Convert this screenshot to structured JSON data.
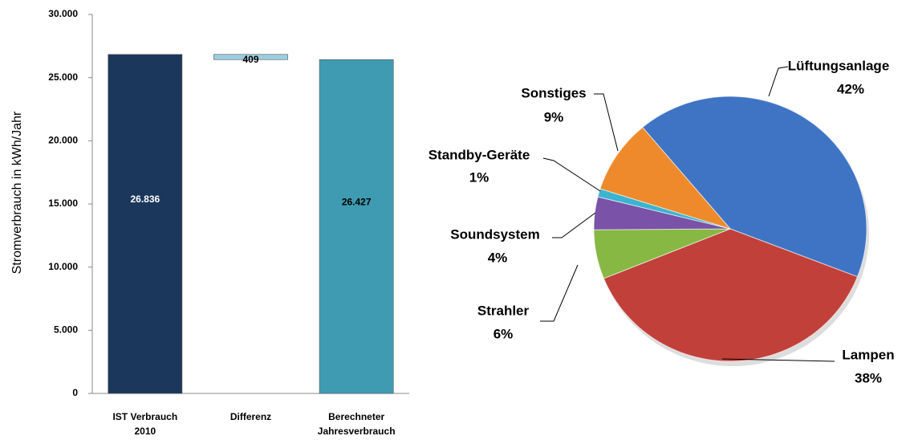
{
  "chart_data": [
    {
      "type": "waterfall",
      "y_label": "Stromverbrauch in kWh/Jahr",
      "categories": [
        [
          "IST Verbrauch",
          "2010"
        ],
        [
          "Differenz"
        ],
        [
          "Berechneter",
          "Jahresverbrauch"
        ]
      ],
      "values": [
        26836,
        409,
        26427
      ],
      "value_labels": [
        "26.836",
        "409",
        "26.427"
      ],
      "colors": [
        "#1c375c",
        "#9ccde0",
        "#3f9bb1"
      ],
      "ylim": [
        0,
        30000
      ],
      "yticks": [
        0,
        {
          "value": 5000,
          "label": "5.000"
        },
        {
          "value": 10000,
          "label": "10.000"
        },
        {
          "value": 15000,
          "label": "15.000"
        },
        {
          "value": 20000,
          "label": "20.000"
        },
        {
          "value": 25000,
          "label": "25.000"
        },
        {
          "value": 30000,
          "label": "30.000"
        }
      ]
    },
    {
      "type": "pie",
      "categories": [
        "Lüftungsanlage",
        "Lampen",
        "Strahler",
        "Soundsystem",
        "Standby-Geräte",
        "Sonstiges"
      ],
      "values": [
        42,
        38,
        6,
        4,
        1,
        9
      ],
      "value_labels": [
        "42%",
        "38%",
        "6%",
        "4%",
        "1%",
        "9%"
      ],
      "colors": [
        "#3f74c4",
        "#c2403a",
        "#86b843",
        "#7a52a8",
        "#3bb4d0",
        "#ee8a2c"
      ]
    }
  ]
}
